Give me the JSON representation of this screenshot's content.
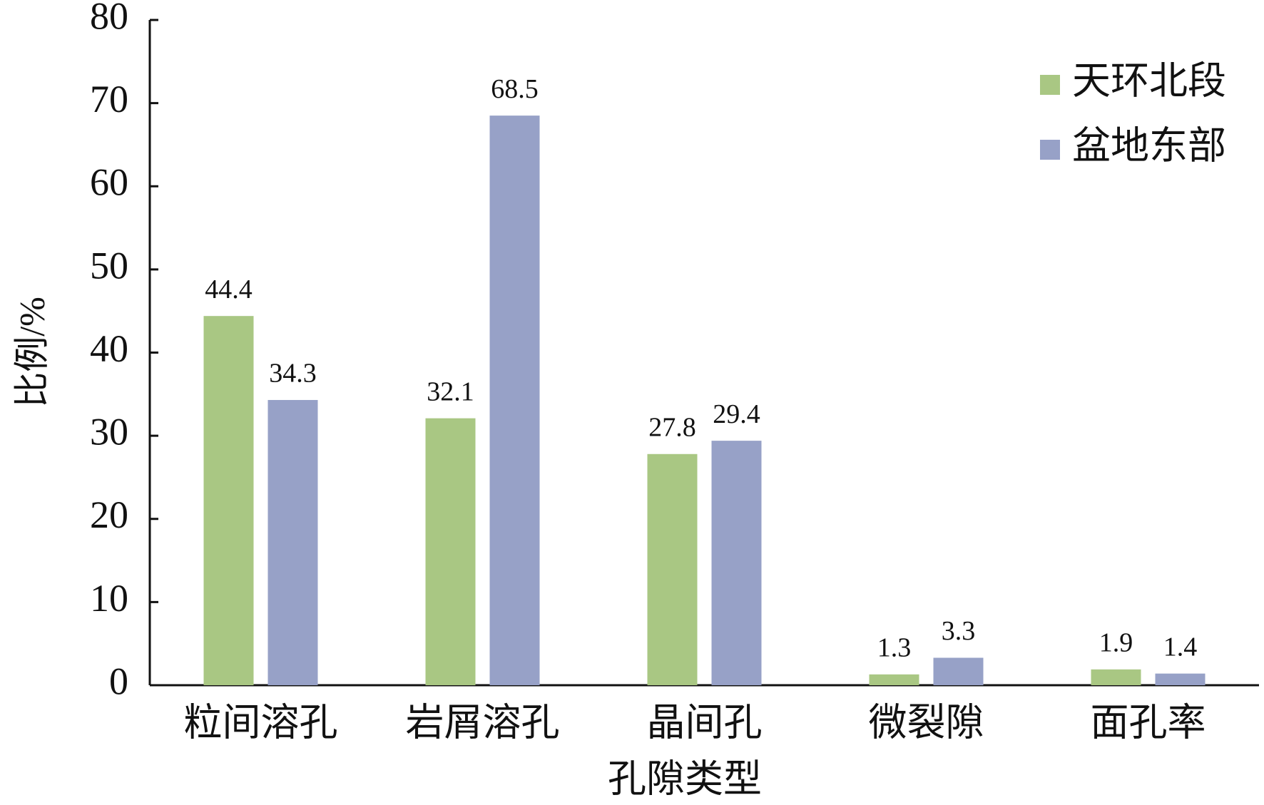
{
  "chart_data": {
    "type": "bar",
    "x_label": "孔隙类型",
    "y_label": "比例/%",
    "categories": [
      "粒间溶孔",
      "岩屑溶孔",
      "晶间孔",
      "微裂隙",
      "面孔率"
    ],
    "series": [
      {
        "name": "天环北段",
        "color": "#a9c783",
        "values": [
          44.4,
          32.1,
          27.8,
          1.3,
          1.9
        ]
      },
      {
        "name": "盆地东部",
        "color": "#97a1c7",
        "values": [
          34.3,
          68.5,
          29.4,
          3.3,
          1.4
        ]
      }
    ],
    "ylim": [
      0,
      80
    ],
    "yticks": [
      0,
      10,
      20,
      30,
      40,
      50,
      60,
      70,
      80
    ],
    "legend": "upper right",
    "grid": false
  }
}
